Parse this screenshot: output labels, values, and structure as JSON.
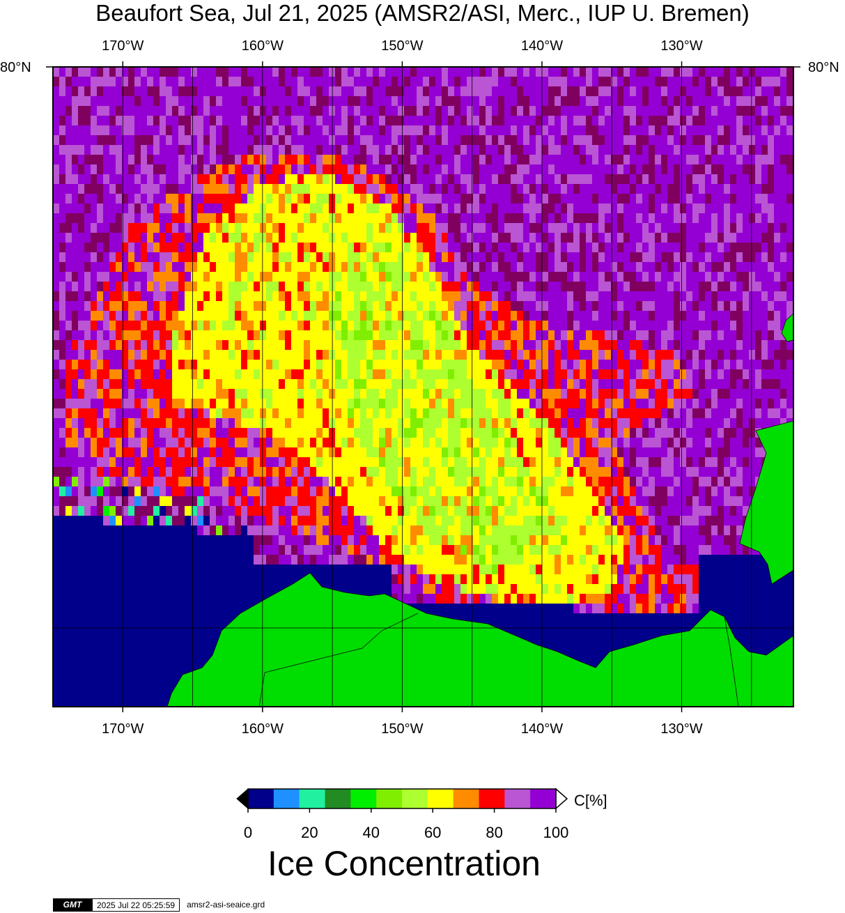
{
  "title": "Beaufort Sea, Jul 21, 2025 (AMSR2/ASI, Merc., IUP U. Bremen)",
  "map": {
    "lon_labels": [
      "170°W",
      "160°W",
      "150°W",
      "140°W",
      "130°W"
    ],
    "lon_values": [
      -170,
      -160,
      -150,
      -140,
      -130
    ],
    "lat_label": "80°N",
    "lon_range": [
      -175,
      -122
    ]
  },
  "colorbar": {
    "unit": "C[%]",
    "title": "Ice Concentration",
    "tick_labels": [
      "0",
      "20",
      "40",
      "60",
      "80",
      "100"
    ],
    "colors": [
      "#00008b",
      "#1e90ff",
      "#20f0a0",
      "#228b22",
      "#00ee00",
      "#80ee00",
      "#adff2f",
      "#ffff00",
      "#ff8c00",
      "#ff0000",
      "#ba55d3",
      "#9400d3"
    ],
    "below_color": "#000000",
    "above_color": "#ffffff",
    "land_color": "#00dd00",
    "ocean_color": "#00008b",
    "dark_ice_color": "#800060"
  },
  "footer": {
    "logo": "GMT",
    "timestamp": "2025 Jul 22 05:25:59",
    "grid_file": "amsr2-asi-seaice.grd"
  }
}
